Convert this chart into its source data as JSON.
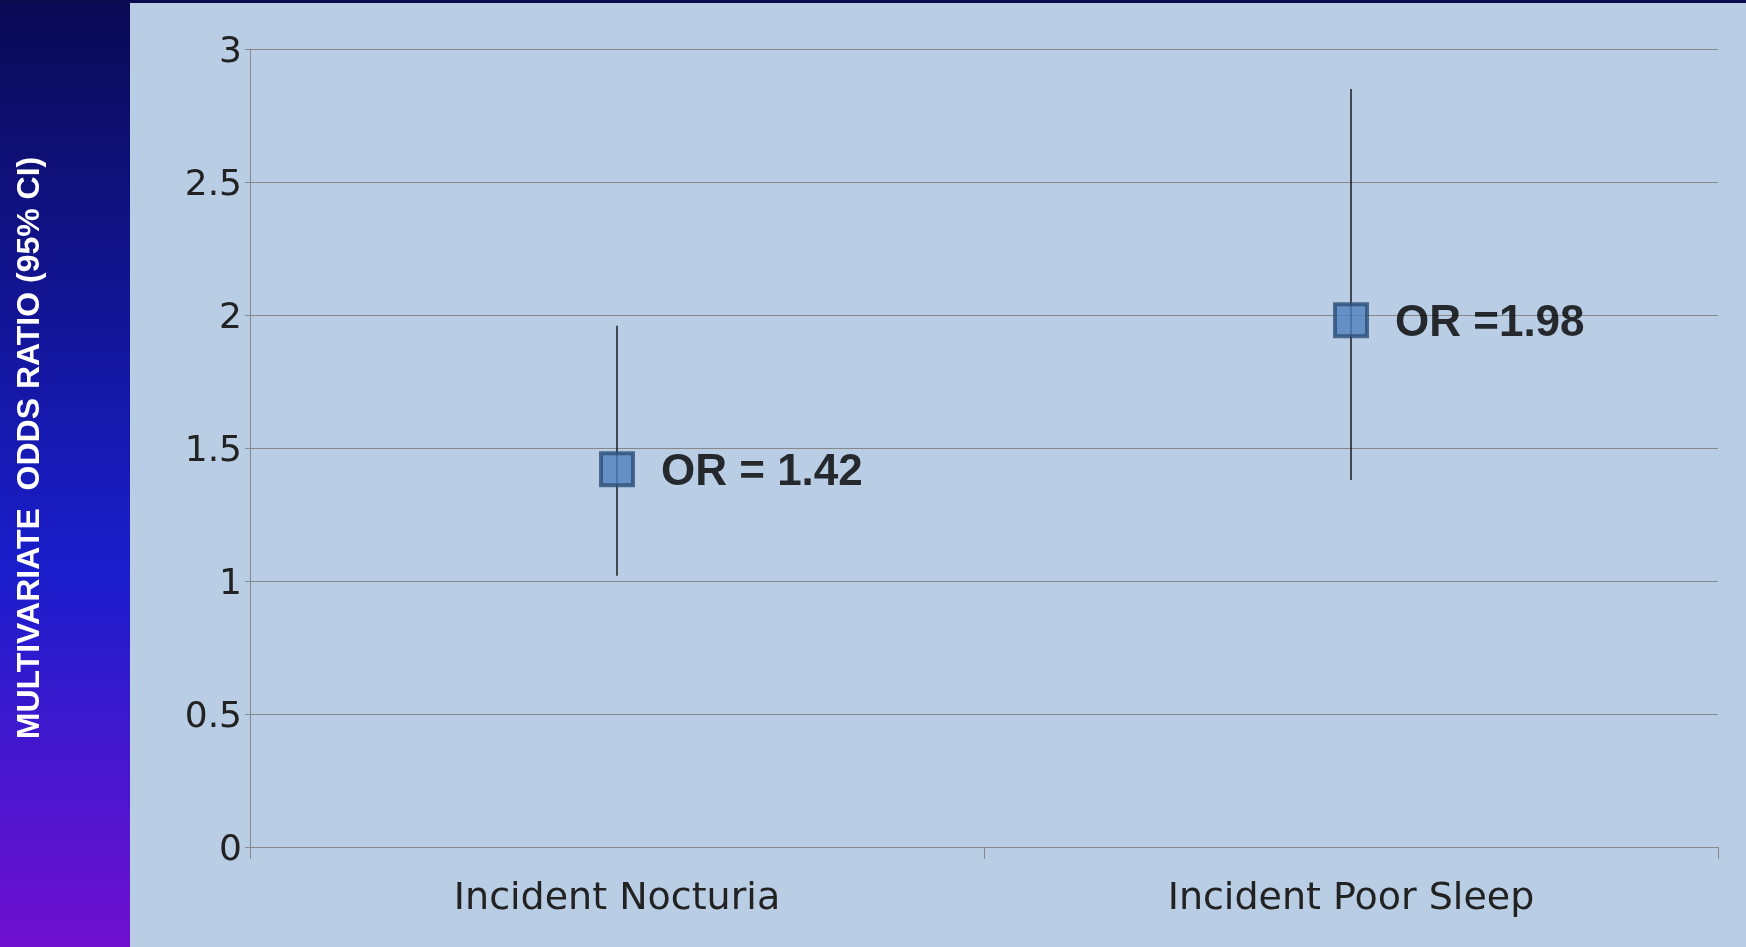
{
  "chart_data": {
    "type": "scatter",
    "ylabel": "MULTIVARIATE  ODDS RATIO (95% CI)",
    "categories": [
      "Incident Nocturia",
      "Incident Poor Sleep"
    ],
    "series": [
      {
        "color": "#4f81bd",
        "values": [
          1.42,
          1.98
        ],
        "errors": [
          [
            1.02,
            1.96
          ],
          [
            1.38,
            2.85
          ]
        ],
        "value_labels": [
          "OR = 1.42",
          "OR =1.98"
        ]
      }
    ],
    "ylim": [
      0,
      3
    ],
    "yticks": [
      0,
      0.5,
      1,
      1.5,
      2,
      2.5,
      3
    ],
    "grid": "y",
    "marker": "square"
  }
}
